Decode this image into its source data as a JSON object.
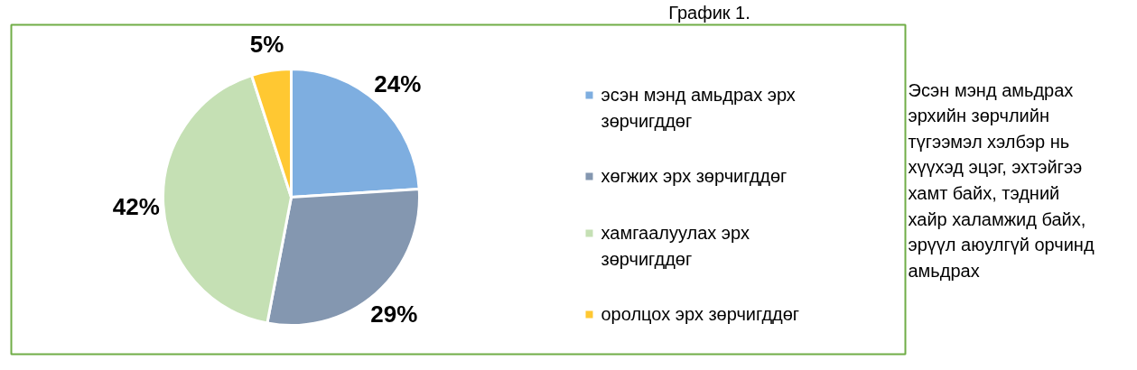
{
  "chart_data": {
    "type": "pie",
    "title": "График 1.",
    "categories": [
      "эсэн мэнд амьдрах эрх зөрчигддөг",
      "хөгжих эрх зөрчигддөг",
      "хамгаалуулах эрх зөрчигддөг",
      "оролцох эрх зөрчигддөг"
    ],
    "values": [
      24,
      29,
      42,
      5
    ],
    "colors": [
      "#7eaee0",
      "#8497b0",
      "#c5e0b4",
      "#ffc832"
    ],
    "value_labels": [
      "24%",
      "29%",
      "42%",
      "5%"
    ],
    "legend": "right",
    "annotations": [
      "Эсэн мэнд амьдрах эрхийн зөрчлийн түгээмэл хэлбэр нь хүүхэд эцэг, эхтэйгээ хамт байх, тэдний хайр халамжид байх, эрүүл аюулгүй орчинд амьдрах"
    ]
  }
}
